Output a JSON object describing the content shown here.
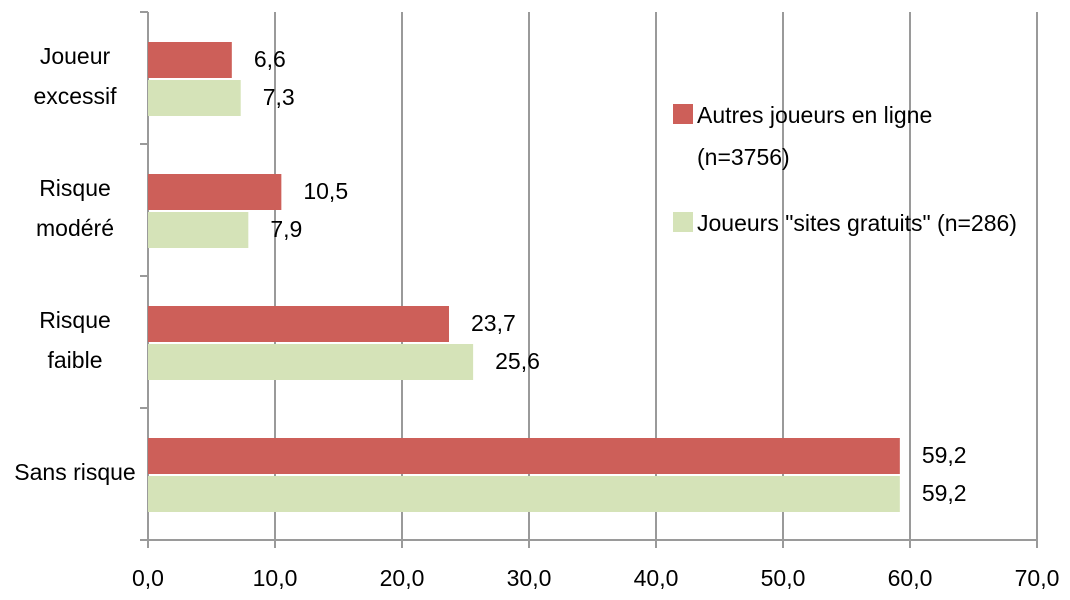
{
  "chart_data": {
    "type": "hbar",
    "categories": [
      "Joueur excessif",
      "Risque modéré",
      "Risque faible",
      "Sans risque"
    ],
    "series": [
      {
        "name": "Autres joueurs en ligne (n=3756)",
        "color": "#cd5f59",
        "values": [
          6.6,
          10.5,
          23.7,
          59.2
        ],
        "value_labels": [
          "6,6",
          "10,5",
          "23,7",
          "59,2"
        ]
      },
      {
        "name": "Joueurs \"sites gratuits\" (n=286)",
        "color": "#d5e3b8",
        "values": [
          7.3,
          7.9,
          25.6,
          59.2
        ],
        "value_labels": [
          "7,3",
          "7,9",
          "25,6",
          "59,2"
        ]
      }
    ],
    "xlim": [
      0,
      70
    ],
    "xticks": [
      {
        "value": 0,
        "label": "0,0"
      },
      {
        "value": 10,
        "label": "10,0"
      },
      {
        "value": 20,
        "label": "20,0"
      },
      {
        "value": 30,
        "label": "30,0"
      },
      {
        "value": 40,
        "label": "40,0"
      },
      {
        "value": 50,
        "label": "50,0"
      },
      {
        "value": 60,
        "label": "60,0"
      },
      {
        "value": 70,
        "label": "70,0"
      }
    ],
    "grid": true,
    "legend": "right"
  }
}
